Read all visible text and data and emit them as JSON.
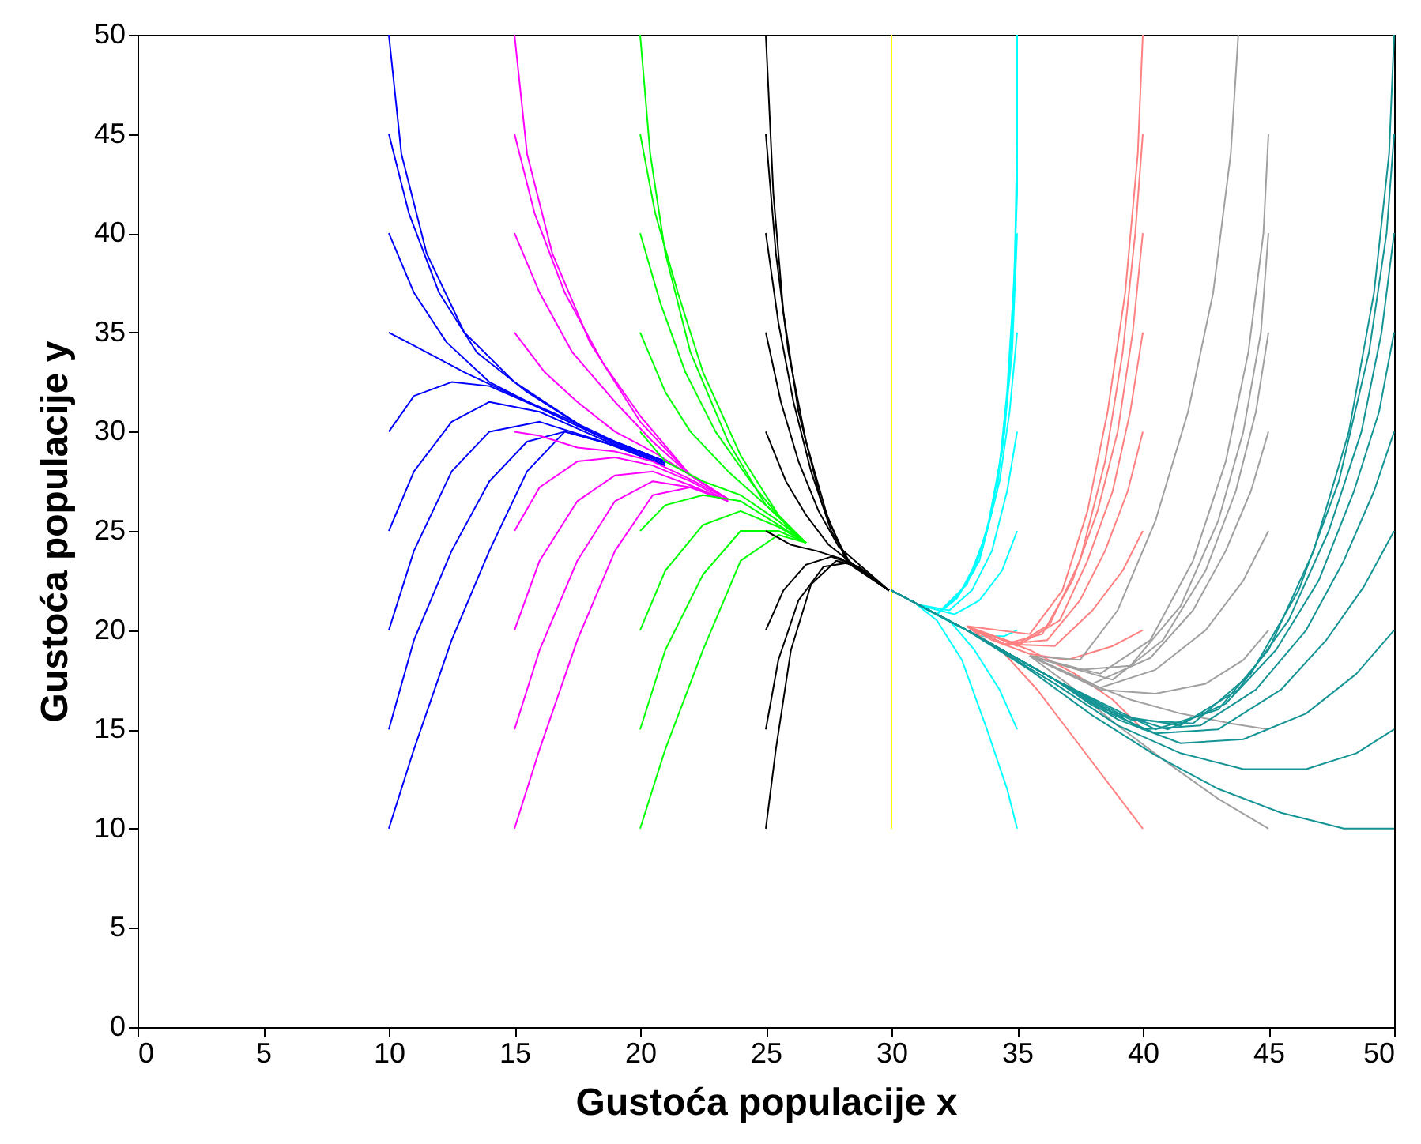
{
  "chart_data": {
    "type": "line",
    "xlabel": "Gustoća populacije x",
    "ylabel": "Gustoća populacije y",
    "xlim": [
      0,
      50
    ],
    "ylim": [
      0,
      50
    ],
    "xticks": [
      0,
      5,
      10,
      15,
      20,
      25,
      30,
      35,
      40,
      45,
      50
    ],
    "yticks": [
      0,
      5,
      10,
      15,
      20,
      25,
      30,
      35,
      40,
      45,
      50
    ],
    "legend": false,
    "line_style": "solid",
    "series": [
      {
        "color": "#0000ff",
        "x": [
          10,
          10.5,
          11.5,
          13,
          15,
          18,
          21
        ],
        "values": [
          50,
          44,
          39,
          35,
          32.5,
          30,
          28.5
        ]
      },
      {
        "color": "#0000ff",
        "x": [
          10,
          10.8,
          12,
          13.5,
          15.5,
          18,
          21
        ],
        "values": [
          45,
          41,
          37,
          34,
          32,
          30,
          28.5
        ]
      },
      {
        "color": "#0000ff",
        "x": [
          10,
          11,
          12.3,
          14,
          16,
          18.5,
          21
        ],
        "values": [
          40,
          37,
          34.5,
          32.5,
          31.2,
          29.7,
          28.5
        ]
      },
      {
        "color": "#0000ff",
        "x": [
          10,
          11.5,
          13,
          15,
          17,
          19,
          21
        ],
        "values": [
          35,
          34,
          33,
          31.8,
          30.7,
          29.5,
          28.5
        ]
      },
      {
        "color": "#0000ff",
        "x": [
          10,
          11,
          12.5,
          14,
          16,
          18.5,
          21
        ],
        "values": [
          30,
          31.8,
          32.5,
          32.3,
          31.2,
          29.7,
          28.4
        ]
      },
      {
        "color": "#0000ff",
        "x": [
          10,
          11,
          12.5,
          14,
          16,
          18.5,
          21
        ],
        "values": [
          25,
          28,
          30.5,
          31.5,
          31,
          29.6,
          28.4
        ]
      },
      {
        "color": "#0000ff",
        "x": [
          10,
          11,
          12.5,
          14,
          16,
          18.5,
          21
        ],
        "values": [
          20,
          24,
          28,
          30,
          30.5,
          29.5,
          28.3
        ]
      },
      {
        "color": "#0000ff",
        "x": [
          10,
          11,
          12.5,
          14,
          15.5,
          17,
          19,
          21
        ],
        "values": [
          15,
          19.5,
          24,
          27.5,
          29.5,
          30,
          29.3,
          28.3
        ]
      },
      {
        "color": "#0000ff",
        "x": [
          10,
          11,
          12.5,
          14,
          15.5,
          17,
          19,
          21
        ],
        "values": [
          10,
          14,
          19.5,
          24,
          28,
          30,
          29.3,
          28.3
        ]
      },
      {
        "color": "#ff00ff",
        "x": [
          15,
          15.5,
          16.5,
          18,
          20,
          22,
          23.5
        ],
        "values": [
          50,
          44,
          39,
          34.5,
          30.5,
          27.8,
          26.6
        ]
      },
      {
        "color": "#ff00ff",
        "x": [
          15,
          15.8,
          17,
          18.5,
          20,
          22,
          23.5
        ],
        "values": [
          45,
          41,
          37,
          33.5,
          30.8,
          27.8,
          26.6
        ]
      },
      {
        "color": "#ff00ff",
        "x": [
          15,
          16,
          17.3,
          19,
          20.5,
          22,
          23.5
        ],
        "values": [
          40,
          37,
          34,
          31.5,
          29.5,
          27.8,
          26.6
        ]
      },
      {
        "color": "#ff00ff",
        "x": [
          15,
          16.2,
          17.5,
          19,
          20.5,
          22,
          23.5
        ],
        "values": [
          35,
          33,
          31.5,
          30,
          29,
          27.8,
          26.6
        ]
      },
      {
        "color": "#ff00ff",
        "x": [
          15,
          16,
          17.5,
          19,
          20.5,
          22,
          23.5
        ],
        "values": [
          30,
          29.8,
          29.2,
          29,
          28.5,
          27.6,
          26.6
        ]
      },
      {
        "color": "#ff00ff",
        "x": [
          15,
          16,
          17.5,
          19,
          20.5,
          22,
          23.5
        ],
        "values": [
          25,
          27.2,
          28.5,
          28.7,
          28.3,
          27.5,
          26.5
        ]
      },
      {
        "color": "#ff00ff",
        "x": [
          15,
          16,
          17.5,
          19,
          20.5,
          22,
          23.5
        ],
        "values": [
          20,
          23.5,
          26.5,
          27.8,
          28,
          27.3,
          26.5
        ]
      },
      {
        "color": "#ff00ff",
        "x": [
          15,
          16,
          17.5,
          19,
          20.5,
          22,
          23.5
        ],
        "values": [
          15,
          19,
          23.5,
          26.5,
          27.5,
          27.2,
          26.5
        ]
      },
      {
        "color": "#ff00ff",
        "x": [
          15,
          16,
          17.5,
          19,
          20.5,
          22,
          23.5
        ],
        "values": [
          10,
          14,
          19.5,
          24,
          26.8,
          27.2,
          26.5
        ]
      },
      {
        "color": "#00ff00",
        "x": [
          20,
          20.4,
          21,
          22,
          23.5,
          25,
          26.6
        ],
        "values": [
          50,
          44,
          39,
          34,
          29.5,
          26.3,
          24.4
        ]
      },
      {
        "color": "#00ff00",
        "x": [
          20,
          20.6,
          21.5,
          22.5,
          24,
          25.5,
          26.6
        ],
        "values": [
          45,
          41,
          37,
          33,
          28.8,
          25.8,
          24.4
        ]
      },
      {
        "color": "#00ff00",
        "x": [
          20,
          20.8,
          21.8,
          23,
          24.5,
          26,
          26.6
        ],
        "values": [
          40,
          36.5,
          33,
          30,
          27.3,
          25,
          24.4
        ]
      },
      {
        "color": "#00ff00",
        "x": [
          20,
          21,
          22,
          23.5,
          25,
          26.6
        ],
        "values": [
          35,
          32,
          30,
          28,
          26.3,
          24.4
        ]
      },
      {
        "color": "#00ff00",
        "x": [
          20,
          21,
          22.5,
          24,
          25.5,
          26.6
        ],
        "values": [
          30,
          28.5,
          27.5,
          26.8,
          25.5,
          24.4
        ]
      },
      {
        "color": "#00ff00",
        "x": [
          20,
          21,
          22.5,
          24,
          25.5,
          26.6
        ],
        "values": [
          25,
          26.3,
          26.8,
          26.5,
          25.3,
          24.4
        ]
      },
      {
        "color": "#00ff00",
        "x": [
          20,
          21,
          22.5,
          24,
          25.5,
          26.6
        ],
        "values": [
          20,
          23,
          25.3,
          26,
          25.2,
          24.4
        ]
      },
      {
        "color": "#00ff00",
        "x": [
          20,
          21,
          22.5,
          24,
          25.5,
          26.6
        ],
        "values": [
          15,
          19,
          22.8,
          25,
          25,
          24.4
        ]
      },
      {
        "color": "#00ff00",
        "x": [
          20,
          21,
          22.5,
          24,
          25.5,
          26.6
        ],
        "values": [
          10,
          14,
          19,
          23.5,
          24.8,
          24.4
        ]
      },
      {
        "color": "#000000",
        "x": [
          25,
          25.3,
          25.7,
          26.3,
          27.2,
          28.2,
          29.9
        ],
        "values": [
          50,
          42,
          36,
          31,
          26.5,
          23.5,
          22
        ]
      },
      {
        "color": "#000000",
        "x": [
          25,
          25.4,
          25.9,
          26.6,
          27.5,
          28.3,
          29.9
        ],
        "values": [
          45,
          39,
          34,
          29.5,
          25.5,
          23.4,
          22
        ]
      },
      {
        "color": "#000000",
        "x": [
          25,
          25.5,
          26.1,
          26.8,
          27.6,
          28.4,
          29.9
        ],
        "values": [
          40,
          35.5,
          31.5,
          28,
          25,
          23.3,
          22
        ]
      },
      {
        "color": "#000000",
        "x": [
          25,
          25.6,
          26.3,
          27.1,
          27.9,
          29.9
        ],
        "values": [
          35,
          31.5,
          28.5,
          26,
          24.2,
          22
        ]
      },
      {
        "color": "#000000",
        "x": [
          25,
          25.8,
          26.6,
          27.5,
          28.3,
          29.9
        ],
        "values": [
          30,
          27.5,
          25.8,
          24.3,
          23.5,
          22
        ]
      },
      {
        "color": "#000000",
        "x": [
          25,
          26,
          27,
          28,
          29.9
        ],
        "values": [
          25,
          24.3,
          24,
          23.6,
          22
        ]
      },
      {
        "color": "#000000",
        "x": [
          25,
          25.7,
          26.6,
          27.6,
          28.5,
          29.9
        ],
        "values": [
          20,
          22,
          23.3,
          23.7,
          23.3,
          22
        ]
      },
      {
        "color": "#000000",
        "x": [
          25,
          25.5,
          26.3,
          27.3,
          28.3,
          29.9
        ],
        "values": [
          15,
          18.5,
          21.5,
          23.2,
          23.4,
          22
        ]
      },
      {
        "color": "#000000",
        "x": [
          25,
          25.4,
          26,
          26.8,
          27.8,
          28.7,
          29.9
        ],
        "values": [
          10,
          14,
          19,
          22.3,
          23.5,
          23.2,
          22
        ]
      },
      {
        "color": "#ffff00",
        "x": [
          30,
          30
        ],
        "values": [
          10,
          50
        ]
      },
      {
        "color": "#00ffff",
        "x": [
          35,
          35,
          34.8,
          34.5,
          34,
          33.3,
          32.5,
          31.8,
          31
        ],
        "values": [
          50,
          42,
          35,
          30,
          26,
          23,
          21.5,
          20.8,
          21.3
        ]
      },
      {
        "color": "#00ffff",
        "x": [
          35,
          34.9,
          34.6,
          34.2,
          33.5,
          32.6,
          31.8,
          31
        ],
        "values": [
          45,
          38,
          32,
          27,
          23.5,
          21.6,
          20.8,
          21.3
        ]
      },
      {
        "color": "#00ffff",
        "x": [
          35,
          34.8,
          34.4,
          33.8,
          33,
          31.8,
          31
        ],
        "values": [
          40,
          34,
          29,
          25,
          22.3,
          20.8,
          21.3
        ]
      },
      {
        "color": "#00ffff",
        "x": [
          35,
          34.7,
          34.3,
          33.6,
          32.7,
          31.8,
          31
        ],
        "values": [
          35,
          31,
          27.5,
          24,
          21.8,
          20.8,
          21.3
        ]
      },
      {
        "color": "#00ffff",
        "x": [
          35,
          34.6,
          34,
          33.2,
          32.3,
          31
        ],
        "values": [
          30,
          27,
          24,
          22,
          21,
          21.3
        ]
      },
      {
        "color": "#00ffff",
        "x": [
          35,
          34.4,
          33.5,
          32.5,
          31
        ],
        "values": [
          25,
          23,
          21.5,
          20.8,
          21.3
        ]
      },
      {
        "color": "#00ffff",
        "x": [
          35,
          34.5,
          33.5,
          32.5,
          31
        ],
        "values": [
          20,
          19.7,
          19.7,
          20.3,
          21.3
        ]
      },
      {
        "color": "#00ffff",
        "x": [
          35,
          34.3,
          33.3,
          32.3,
          31
        ],
        "values": [
          15,
          17,
          19,
          20.5,
          21.3
        ]
      },
      {
        "color": "#00ffff",
        "x": [
          35,
          34.6,
          33.8,
          32.8,
          31.8,
          31
        ],
        "values": [
          10,
          12,
          15,
          18.5,
          20.5,
          21.3
        ]
      },
      {
        "color": "#ff8080",
        "x": [
          40,
          39.8,
          39.3,
          38.6,
          37.8,
          36.8,
          35.5,
          33
        ],
        "values": [
          50,
          44,
          37,
          31,
          26,
          22,
          19.8,
          20.2
        ]
      },
      {
        "color": "#ff8080",
        "x": [
          40,
          39.7,
          39.2,
          38.5,
          37.5,
          36.3,
          35,
          33
        ],
        "values": [
          45,
          40,
          34,
          28.5,
          23.5,
          20.3,
          19.3,
          20.2
        ]
      },
      {
        "color": "#ff8080",
        "x": [
          40,
          39.6,
          39,
          38.2,
          37.2,
          36,
          34.5,
          33
        ],
        "values": [
          40,
          35,
          30,
          26,
          22.5,
          19.8,
          19.3,
          20.2
        ]
      },
      {
        "color": "#ff8080",
        "x": [
          40,
          39.5,
          38.8,
          37.8,
          36.7,
          35,
          33
        ],
        "values": [
          35,
          31,
          27,
          23.5,
          20.5,
          19.2,
          20.2
        ]
      },
      {
        "color": "#ff8080",
        "x": [
          40,
          39.4,
          38.5,
          37.5,
          36.2,
          34.5,
          33
        ],
        "values": [
          30,
          27,
          24,
          21.5,
          19.5,
          19.3,
          20.2
        ]
      },
      {
        "color": "#ff8080",
        "x": [
          40,
          39.2,
          38,
          36.5,
          34.5,
          33
        ],
        "values": [
          25,
          23,
          21,
          19.2,
          19.3,
          20.2
        ]
      },
      {
        "color": "#ff8080",
        "x": [
          40,
          38.8,
          37,
          35.5,
          34,
          33
        ],
        "values": [
          20,
          19.2,
          18.5,
          18.8,
          19.5,
          20.2
        ]
      },
      {
        "color": "#ff8080",
        "x": [
          40,
          38.8,
          37.3,
          35.5,
          33
        ],
        "values": [
          15,
          16.5,
          17.8,
          19,
          20.2
        ]
      },
      {
        "color": "#ff8080",
        "x": [
          40,
          38.8,
          37.3,
          35.8,
          34.5,
          33
        ],
        "values": [
          10,
          12,
          14.5,
          17,
          18.8,
          20.2
        ]
      },
      {
        "color": "#a0a0a0",
        "x": [
          43.8,
          43.5,
          42.8,
          41.8,
          40.5,
          39,
          37.5,
          35.5
        ],
        "values": [
          50,
          44,
          37,
          31,
          25.5,
          21,
          18.5,
          18.7
        ]
      },
      {
        "color": "#a0a0a0",
        "x": [
          45,
          44.8,
          44.2,
          43.3,
          42,
          40.3,
          38.3,
          35.5
        ],
        "values": [
          45,
          40,
          34,
          28.5,
          23.5,
          19.5,
          17.8,
          18.7
        ]
      },
      {
        "color": "#a0a0a0",
        "x": [
          45,
          44.7,
          44,
          43,
          41.5,
          39.5,
          37.5,
          35.5
        ],
        "values": [
          40,
          35,
          30,
          25.5,
          21.2,
          18.2,
          18,
          18.7
        ]
      },
      {
        "color": "#a0a0a0",
        "x": [
          45,
          44.5,
          43.7,
          42.5,
          40.8,
          38.8,
          35.5
        ],
        "values": [
          35,
          31,
          27,
          23,
          19.5,
          17.5,
          18.7
        ]
      },
      {
        "color": "#a0a0a0",
        "x": [
          45,
          44.3,
          43.3,
          42,
          40.3,
          38,
          35.5
        ],
        "values": [
          30,
          27,
          24,
          21,
          18.6,
          17.3,
          18.7
        ]
      },
      {
        "color": "#a0a0a0",
        "x": [
          45,
          44,
          42.5,
          40.5,
          38.3,
          35.5
        ],
        "values": [
          25,
          22.5,
          20,
          18,
          17.1,
          18.7
        ]
      },
      {
        "color": "#a0a0a0",
        "x": [
          45,
          44,
          42.5,
          40.5,
          38.3,
          35.5
        ],
        "values": [
          20,
          18.5,
          17.3,
          16.8,
          17,
          18.7
        ]
      },
      {
        "color": "#a0a0a0",
        "x": [
          45,
          43.5,
          41.5,
          39.5,
          37.5,
          35.5
        ],
        "values": [
          15,
          15.3,
          15.8,
          16.5,
          17.5,
          18.7
        ]
      },
      {
        "color": "#a0a0a0",
        "x": [
          45,
          43,
          41,
          39,
          37,
          35.5
        ],
        "values": [
          10,
          11.5,
          13.3,
          15.2,
          17.3,
          18.7
        ]
      },
      {
        "color": "#149494",
        "x": [
          50,
          49.8,
          49.2,
          48.2,
          46.8,
          45,
          43,
          40.5,
          36.5,
          33,
          30
        ],
        "values": [
          50,
          44,
          37,
          30,
          24,
          19,
          16,
          15,
          17.5,
          20,
          22
        ]
      },
      {
        "color": "#149494",
        "x": [
          50,
          49.7,
          49,
          47.8,
          46.2,
          44.3,
          42,
          39.5,
          36.5,
          33,
          30
        ],
        "values": [
          45,
          40,
          34,
          27.5,
          22,
          17.8,
          15.3,
          15.5,
          17.5,
          20,
          22
        ]
      },
      {
        "color": "#149494",
        "x": [
          50,
          49.5,
          48.7,
          47.4,
          45.8,
          43.8,
          41.5,
          39,
          36.5,
          33,
          30
        ],
        "values": [
          40,
          35,
          30,
          25,
          20.5,
          17,
          15.2,
          15.7,
          17.5,
          20,
          22
        ]
      },
      {
        "color": "#149494",
        "x": [
          50,
          49.4,
          48.4,
          47,
          45.3,
          43.3,
          41,
          38.5,
          36.5,
          33,
          30
        ],
        "values": [
          35,
          31,
          27,
          22.5,
          19,
          16.3,
          15,
          16,
          17.5,
          20,
          22
        ]
      },
      {
        "color": "#149494",
        "x": [
          50,
          49.2,
          48,
          46.5,
          44.5,
          42.3,
          40,
          36.5,
          33,
          30
        ],
        "values": [
          30,
          27,
          23.5,
          20,
          17,
          15.2,
          15,
          17.5,
          20,
          22
        ]
      },
      {
        "color": "#149494",
        "x": [
          50,
          48.8,
          47.3,
          45.5,
          43,
          40.5,
          38,
          36.5,
          33,
          30
        ],
        "values": [
          25,
          22.2,
          19.5,
          17,
          15,
          14.8,
          16.2,
          17.5,
          20,
          22
        ]
      },
      {
        "color": "#149494",
        "x": [
          50,
          48.5,
          46.5,
          44,
          41.5,
          39,
          36.5,
          33,
          30
        ],
        "values": [
          20,
          17.8,
          15.8,
          14.5,
          14.3,
          15.5,
          17.5,
          20,
          22
        ]
      },
      {
        "color": "#149494",
        "x": [
          50,
          48.5,
          46.5,
          44,
          41.5,
          39,
          36.5,
          33,
          30
        ],
        "values": [
          15,
          13.8,
          13,
          13,
          13.8,
          15.2,
          17.3,
          20,
          22
        ]
      },
      {
        "color": "#149494",
        "x": [
          50,
          48,
          45.5,
          43,
          40.5,
          38,
          35.5,
          33,
          30
        ],
        "values": [
          10,
          10,
          10.8,
          12,
          13.7,
          15.7,
          18,
          20,
          22
        ]
      }
    ]
  }
}
